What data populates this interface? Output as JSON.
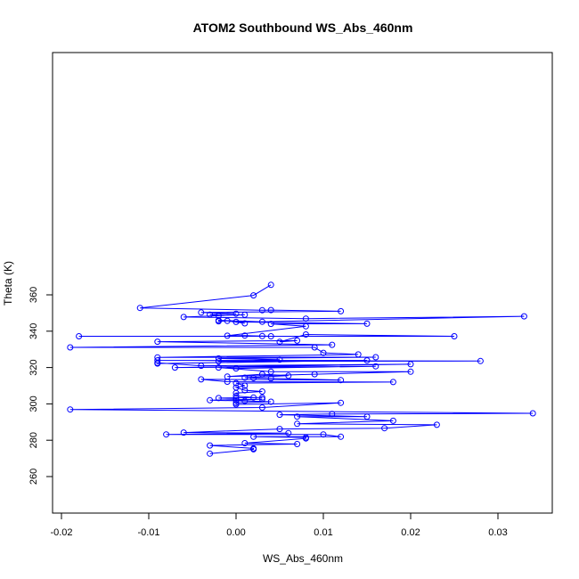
{
  "chart_data": {
    "type": "line",
    "title": "ATOM2 Southbound WS_Abs_460nm",
    "xlabel": "WS_Abs_460nm",
    "ylabel": "Theta (K)",
    "xlim": [
      -0.02,
      0.035
    ],
    "ylim": [
      250,
      376
    ],
    "xticks": [
      -0.02,
      -0.01,
      0.0,
      0.01,
      0.02,
      0.03
    ],
    "xtick_labels": [
      "-0.02",
      "-0.01",
      "0.00",
      "0.01",
      "0.02",
      "0.03"
    ],
    "yticks": [
      260,
      280,
      300,
      320,
      340,
      360
    ],
    "ytick_labels": [
      "260",
      "280",
      "300",
      "320",
      "340",
      "360"
    ],
    "grid": false,
    "series": [
      {
        "color": "#0000ff",
        "marker": "open-circle",
        "points": [
          [
            0.004,
            365.5
          ],
          [
            0.002,
            359.7
          ],
          [
            -0.011,
            352.8
          ],
          [
            0.003,
            351.5
          ],
          [
            0.004,
            351.6
          ],
          [
            0.012,
            351.0
          ],
          [
            -0.004,
            350.3
          ],
          [
            0.0,
            349.6
          ],
          [
            -0.003,
            349.1
          ],
          [
            -0.002,
            348.6
          ],
          [
            0.001,
            349.0
          ],
          [
            -0.006,
            347.8
          ],
          [
            0.008,
            346.9
          ],
          [
            0.033,
            348.2
          ],
          [
            0.003,
            345.2
          ],
          [
            -0.002,
            346.0
          ],
          [
            -0.002,
            345.4
          ],
          [
            -0.001,
            345.7
          ],
          [
            0.001,
            344.3
          ],
          [
            0.0,
            345.1
          ],
          [
            0.015,
            344.1
          ],
          [
            0.004,
            344.0
          ],
          [
            0.008,
            342.7
          ],
          [
            -0.001,
            337.5
          ],
          [
            0.001,
            337.6
          ],
          [
            0.003,
            337.3
          ],
          [
            0.004,
            337.2
          ],
          [
            -0.018,
            337.2
          ],
          [
            0.025,
            337.2
          ],
          [
            0.008,
            338.2
          ],
          [
            0.005,
            334.1
          ],
          [
            0.007,
            334.8
          ],
          [
            -0.009,
            334.2
          ],
          [
            0.011,
            332.5
          ],
          [
            -0.019,
            331.1
          ],
          [
            0.009,
            331.1
          ],
          [
            0.01,
            328.1
          ],
          [
            0.014,
            327.2
          ],
          [
            -0.009,
            325.6
          ],
          [
            0.016,
            325.7
          ],
          [
            -0.002,
            325.0
          ],
          [
            0.005,
            324.3
          ],
          [
            -0.002,
            323.4
          ],
          [
            0.028,
            323.6
          ],
          [
            -0.009,
            323.9
          ],
          [
            0.015,
            323.9
          ],
          [
            -0.009,
            322.2
          ],
          [
            -0.009,
            322.6
          ],
          [
            -0.004,
            321.0
          ],
          [
            0.02,
            321.8
          ],
          [
            -0.007,
            320.0
          ],
          [
            0.016,
            320.7
          ],
          [
            0.0,
            319.5
          ],
          [
            -0.002,
            320.0
          ],
          [
            0.004,
            317.7
          ],
          [
            0.02,
            317.7
          ],
          [
            0.009,
            316.3
          ],
          [
            -0.001,
            315.0
          ],
          [
            0.003,
            316.3
          ],
          [
            0.006,
            315.5
          ],
          [
            0.001,
            314.4
          ],
          [
            0.002,
            314.2
          ],
          [
            0.004,
            314.0
          ],
          [
            0.012,
            313.1
          ],
          [
            -0.004,
            313.5
          ],
          [
            -0.001,
            312.2
          ],
          [
            0.018,
            312.0
          ],
          [
            0.0,
            311.4
          ],
          [
            0.001,
            310.0
          ],
          [
            0.0,
            309.0
          ],
          [
            0.001,
            307.5
          ],
          [
            0.003,
            306.8
          ],
          [
            0.0,
            306.0
          ],
          [
            0.0,
            304.3
          ],
          [
            0.002,
            303.5
          ],
          [
            0.003,
            303.5
          ],
          [
            -0.002,
            303.2
          ],
          [
            0.0,
            303.0
          ],
          [
            0.0,
            302.0
          ],
          [
            0.003,
            302.6
          ],
          [
            -0.003,
            302.0
          ],
          [
            0.001,
            301.6
          ],
          [
            0.004,
            301.2
          ],
          [
            0.0,
            300.5
          ],
          [
            0.0,
            299.7
          ],
          [
            0.012,
            300.6
          ],
          [
            0.003,
            298.0
          ],
          [
            -0.019,
            296.9
          ],
          [
            0.034,
            294.8
          ],
          [
            0.011,
            294.4
          ],
          [
            0.005,
            294.0
          ],
          [
            0.015,
            293.0
          ],
          [
            0.007,
            293.0
          ],
          [
            0.018,
            290.7
          ],
          [
            0.007,
            289.0
          ],
          [
            0.023,
            288.5
          ],
          [
            0.017,
            286.6
          ],
          [
            0.005,
            286.2
          ],
          [
            -0.006,
            284.2
          ],
          [
            0.006,
            283.9
          ],
          [
            -0.008,
            283.2
          ],
          [
            0.01,
            283.2
          ],
          [
            0.012,
            281.9
          ],
          [
            0.002,
            281.9
          ],
          [
            0.008,
            281.5
          ],
          [
            0.008,
            281.0
          ],
          [
            0.001,
            278.4
          ],
          [
            0.007,
            277.9
          ],
          [
            -0.003,
            277.1
          ],
          [
            0.002,
            275.5
          ],
          [
            0.002,
            275.0
          ],
          [
            -0.003,
            272.6
          ]
        ]
      }
    ]
  }
}
